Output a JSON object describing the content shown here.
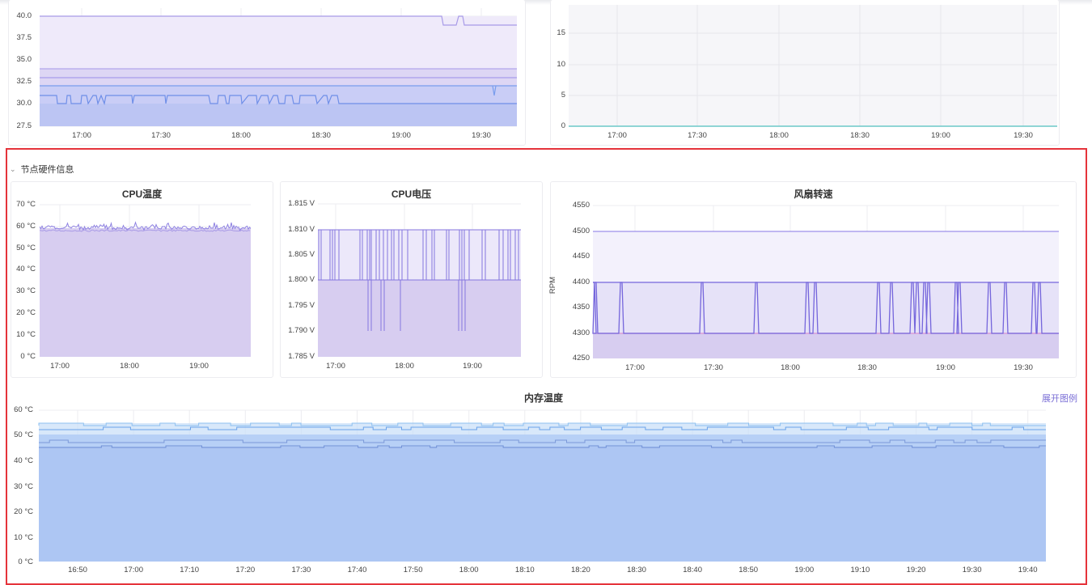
{
  "row": {
    "title": "节点硬件信息"
  },
  "top_left": {
    "y_ticks": [
      "40.0",
      "37.5",
      "35.0",
      "32.5",
      "30.0",
      "27.5"
    ],
    "x_ticks": [
      "17:00",
      "17:30",
      "18:00",
      "18:30",
      "19:00",
      "19:30"
    ]
  },
  "top_right": {
    "y_ticks": [
      "15",
      "10",
      "5",
      "0"
    ],
    "x_ticks": [
      "17:00",
      "17:30",
      "18:00",
      "18:30",
      "19:00",
      "19:30"
    ]
  },
  "cpu_temp": {
    "title": "CPU温度",
    "y_ticks": [
      "70 °C",
      "60 °C",
      "50 °C",
      "40 °C",
      "30 °C",
      "20 °C",
      "10 °C",
      "0 °C"
    ],
    "x_ticks": [
      "17:00",
      "18:00",
      "19:00"
    ]
  },
  "cpu_volt": {
    "title": "CPU电压",
    "y_ticks": [
      "1.815 V",
      "1.810 V",
      "1.805 V",
      "1.800 V",
      "1.795 V",
      "1.790 V",
      "1.785 V"
    ],
    "x_ticks": [
      "17:00",
      "18:00",
      "19:00"
    ]
  },
  "fan": {
    "title": "风扇转速",
    "ylabel": "RPM",
    "y_ticks": [
      "4550",
      "4500",
      "4450",
      "4400",
      "4350",
      "4300",
      "4250"
    ],
    "x_ticks": [
      "17:00",
      "17:30",
      "18:00",
      "18:30",
      "19:00",
      "19:30"
    ]
  },
  "mem_temp": {
    "title": "内存温度",
    "legend_toggle": "展开图例",
    "y_ticks": [
      "60 °C",
      "50 °C",
      "40 °C",
      "30 °C",
      "20 °C",
      "10 °C",
      "0 °C"
    ],
    "x_ticks": [
      "16:50",
      "17:00",
      "17:10",
      "17:20",
      "17:30",
      "17:40",
      "17:50",
      "18:00",
      "18:10",
      "18:20",
      "18:30",
      "18:40",
      "18:50",
      "19:00",
      "19:10",
      "19:20",
      "19:30",
      "19:40"
    ]
  },
  "colors": {
    "purple": "#8b7ee3",
    "blue": "#5c9bef",
    "fill_purple": "#d6cdf0",
    "fill_blue": "#aec8f3",
    "highlight": "#e5333b"
  }
}
